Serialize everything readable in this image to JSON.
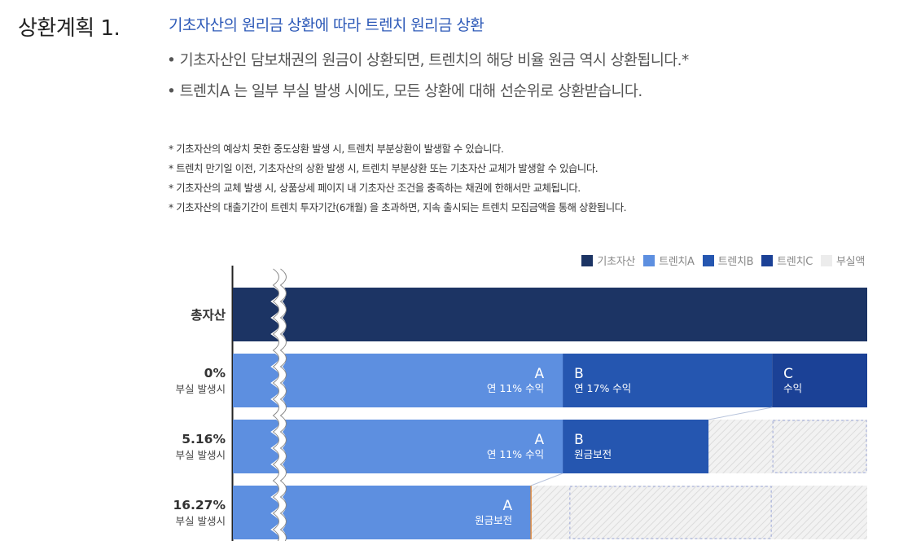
{
  "header": {
    "plan_label": "상환계획 1.",
    "title": "기초자산의 원리금 상환에 따라 트렌치 원리금 상환"
  },
  "bullets": [
    "• 기초자산인 담보채권의 원금이 상환되면, 트렌치의 해당 비율 원금 역시 상환됩니다.*",
    "• 트렌치A 는 일부 부실 발생 시에도, 모든 상환에 대해 선순위로 상환받습니다."
  ],
  "notes": [
    "* 기초자산의 예상치 못한 중도상환 발생 시, 트렌치 부분상환이 발생할 수 있습니다.",
    "* 트렌치 만기일 이전, 기초자산의 상환 발생 시, 트렌치 부분상환 또는 기초자산 교체가 발생할 수 있습니다.",
    "* 기초자산의 교체 발생 시, 상품상세 페이지 내 기초자산 조건을 충족하는 채권에 한해서만 교체됩니다.",
    "* 기초자산의 대출기간이 트렌치 투자기간(6개월) 을 초과하면, 지속 출시되는 트렌치 모집금액을 통해 상환됩니다."
  ],
  "colors": {
    "base_asset": "#1c3464",
    "tranche_a": "#5d8fe0",
    "tranche_b": "#2556b0",
    "tranche_c": "#1b4196",
    "loss": "#ececec"
  },
  "chart_data": {
    "type": "bar",
    "orientation": "horizontal",
    "stacked": true,
    "legend": [
      {
        "key": "base",
        "label": "기초자산",
        "color": "#1c3464"
      },
      {
        "key": "a",
        "label": "트렌치A",
        "color": "#5d8fe0"
      },
      {
        "key": "b",
        "label": "트렌치B",
        "color": "#2556b0"
      },
      {
        "key": "c",
        "label": "트렌치C",
        "color": "#1b4196"
      },
      {
        "key": "loss",
        "label": "부실액",
        "color": "#ececec"
      }
    ],
    "axis_break": true,
    "rows": [
      {
        "label": "총자산",
        "sublabel": "",
        "segments": [
          {
            "series": "base",
            "value": 100,
            "letter": "",
            "text": ""
          }
        ]
      },
      {
        "label": "0%",
        "sublabel": "부실 발생시",
        "segments": [
          {
            "series": "a",
            "value": 52,
            "letter": "A",
            "text": "연 11% 수익"
          },
          {
            "series": "b",
            "value": 33,
            "letter": "B",
            "text": "연 17% 수익"
          },
          {
            "series": "c",
            "value": 15,
            "letter": "C",
            "text": "수익"
          }
        ]
      },
      {
        "label": "5.16%",
        "sublabel": "부실 발생시",
        "segments": [
          {
            "series": "a",
            "value": 52,
            "letter": "A",
            "text": "연 11% 수익"
          },
          {
            "series": "b",
            "value": 23,
            "letter": "B",
            "text": "원금보전"
          },
          {
            "series": "loss",
            "value": 25,
            "letter": "",
            "text": ""
          }
        ]
      },
      {
        "label": "16.27%",
        "sublabel": "부실 발생시",
        "segments": [
          {
            "series": "a",
            "value": 47,
            "letter": "A",
            "text": "원금보전"
          },
          {
            "series": "loss",
            "value": 53,
            "letter": "",
            "text": ""
          }
        ]
      }
    ]
  }
}
